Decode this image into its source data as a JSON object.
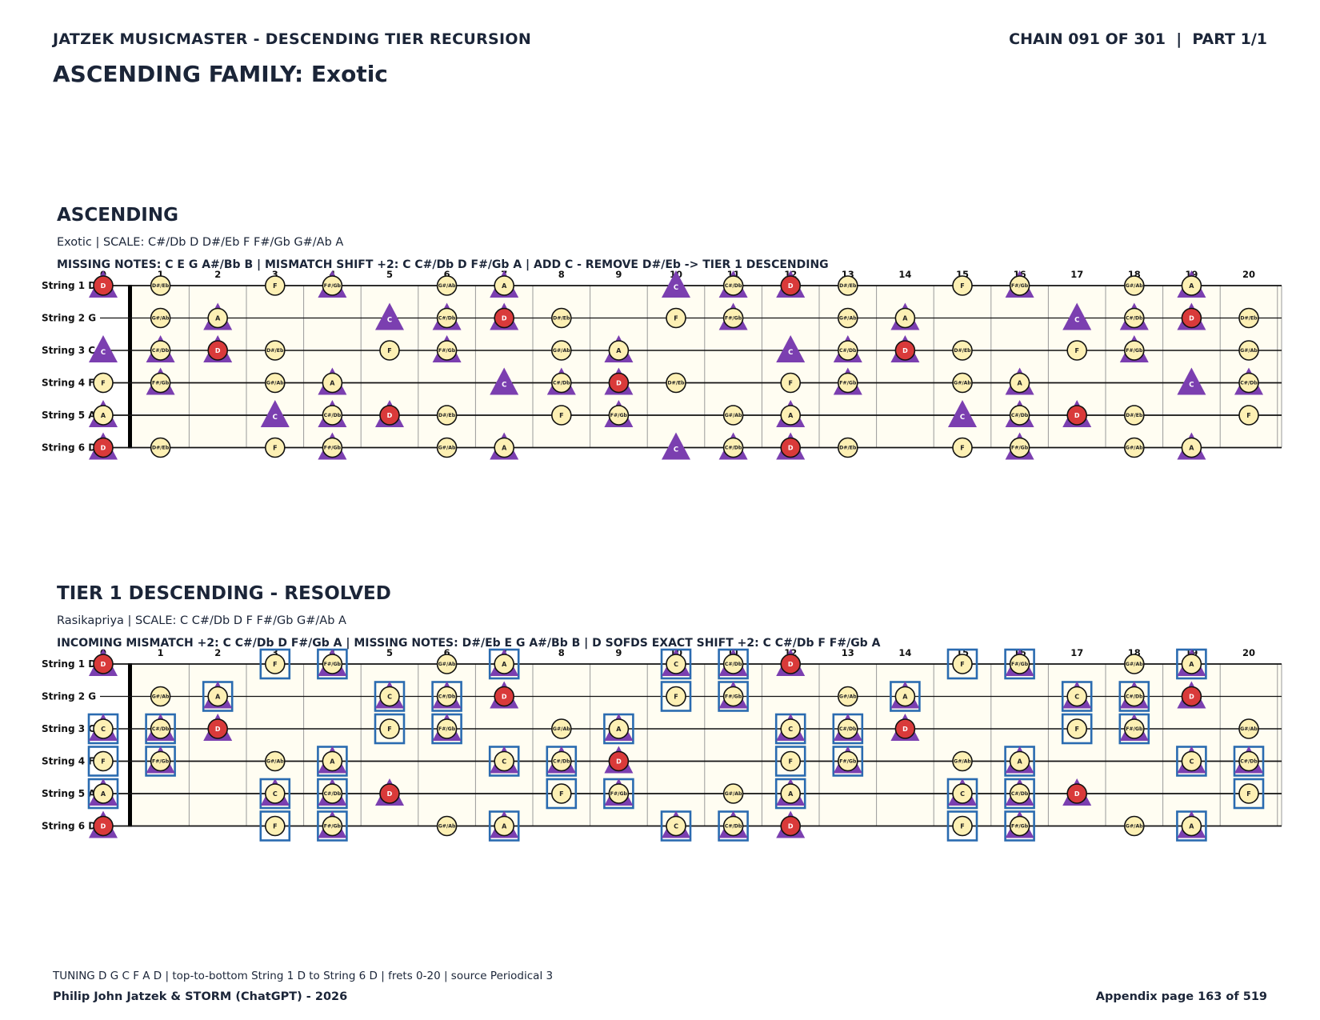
{
  "header": {
    "left": "JATZEK MUSICMASTER - DESCENDING TIER RECURSION",
    "right": "CHAIN 091 OF 301  |  PART 1/1",
    "family_title": "ASCENDING FAMILY: Exotic"
  },
  "tuning": {
    "strings": [
      "String 1 D",
      "String 2 G",
      "String 3 C",
      "String 4 F",
      "String 5 A",
      "String 6 D"
    ],
    "open_notes": [
      "D",
      "G",
      "C",
      "F",
      "A",
      "D"
    ],
    "frets": 20
  },
  "chromatic": [
    "C",
    "C#/Db",
    "D",
    "D#/Eb",
    "E",
    "F",
    "F#/Gb",
    "G",
    "G#/Ab",
    "A",
    "A#/Bb",
    "B"
  ],
  "colors": {
    "note_fill": "#fdf0b4",
    "root_fill": "#d93a3a",
    "marker": "#7b3fb0",
    "box": "#2a6bb0",
    "board_bg": "#fffdf2"
  },
  "sections": [
    {
      "title": "ASCENDING",
      "subtitle": "Exotic  |  SCALE: C#/Db D D#/Eb F F#/Gb G#/Ab A",
      "info": "MISSING NOTES: C E G A#/Bb B  |  MISMATCH SHIFT +2: C C#/Db D F#/Gb A  |  ADD C - REMOVE D#/Eb -> TIER 1 DESCENDING",
      "scale": [
        "C#/Db",
        "D",
        "D#/Eb",
        "F",
        "F#/Gb",
        "G#/Ab",
        "A"
      ],
      "root": "D",
      "markers": [
        "C",
        "C#/Db",
        "D",
        "F#/Gb",
        "A"
      ],
      "boxed": []
    },
    {
      "title": "TIER 1 DESCENDING - RESOLVED",
      "subtitle": "Rasikapriya  |  SCALE: C C#/Db D F F#/Gb G#/Ab A",
      "info": "INCOMING MISMATCH +2: C C#/Db D F#/Gb A  |  MISSING NOTES: D#/Eb E G A#/Bb B  |  D SOFDS EXACT SHIFT +2: C C#/Db F F#/Gb A",
      "scale": [
        "C",
        "C#/Db",
        "D",
        "F",
        "F#/Gb",
        "G#/Ab",
        "A"
      ],
      "root": "D",
      "markers": [
        "C",
        "C#/Db",
        "D",
        "F#/Gb",
        "A"
      ],
      "boxed": [
        "C",
        "C#/Db",
        "F",
        "F#/Gb",
        "A"
      ]
    }
  ],
  "footer": {
    "line1": "TUNING D G C F A D | top-to-bottom String 1 D to String 6 D | frets 0-20 | source Periodical 3",
    "line2": "Philip John Jatzek & STORM (ChatGPT) - 2026",
    "page": "Appendix page 163 of 519"
  }
}
